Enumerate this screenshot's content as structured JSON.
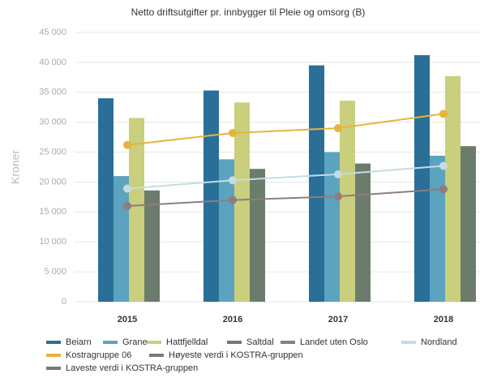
{
  "chart_data": {
    "type": "bar-line",
    "title": "Netto driftsutgifter pr. innbygger til Pleie og omsorg (B)",
    "y_label": "Kroner",
    "categories": [
      "2015",
      "2016",
      "2017",
      "2018"
    ],
    "ylim": [
      0,
      45000
    ],
    "yticks": [
      0,
      {
        "value": 5000,
        "label": "5 000"
      },
      {
        "value": 10000,
        "label": "10 000"
      },
      {
        "value": 15000,
        "label": "15 000"
      },
      {
        "value": 20000,
        "label": "20 000"
      },
      {
        "value": 25000,
        "label": "25 000"
      },
      {
        "value": 30000,
        "label": "30 000"
      },
      {
        "value": 35000,
        "label": "35 000"
      },
      {
        "value": 40000,
        "label": "40 000"
      },
      {
        "value": 45000,
        "label": "45 000"
      }
    ],
    "grid": true,
    "series": [
      {
        "name": "Beiarn",
        "color": "#2a6f97",
        "mark": "bar",
        "values": [
          34000,
          35300,
          39500,
          41200
        ]
      },
      {
        "name": "Grane",
        "color": "#5ba3bf",
        "mark": "bar",
        "values": [
          21000,
          23800,
          25000,
          24400
        ]
      },
      {
        "name": "Hattfjelldal",
        "color": "#c9cf7c",
        "mark": "bar",
        "values": [
          30700,
          33300,
          33600,
          37700
        ]
      },
      {
        "name": "Saltdal",
        "color": "#6c7c6c",
        "mark": "bar",
        "values": [
          18600,
          22200,
          23100,
          26000
        ]
      },
      {
        "name": "Landet uten Oslo",
        "color": "#8e7e7e",
        "mark": "line",
        "values": [
          16000,
          17000,
          17600,
          18800
        ]
      },
      {
        "name": "Nordland",
        "color": "#c6dbe5",
        "mark": "line",
        "values": [
          18900,
          20300,
          21300,
          22700
        ]
      },
      {
        "name": "Kostragruppe 06",
        "color": "#e6b43c",
        "mark": "line",
        "values": [
          26200,
          28200,
          29000,
          31400
        ]
      },
      {
        "name": "Høyeste verdi i KOSTRA-gruppen",
        "color": "#7a7a7a",
        "mark": "line",
        "values": [
          null,
          null,
          null,
          null
        ]
      },
      {
        "name": "Laveste verdi i KOSTRA-gruppen",
        "color": "#6e7e6e",
        "mark": "line",
        "values": [
          null,
          null,
          null,
          null
        ]
      }
    ]
  }
}
